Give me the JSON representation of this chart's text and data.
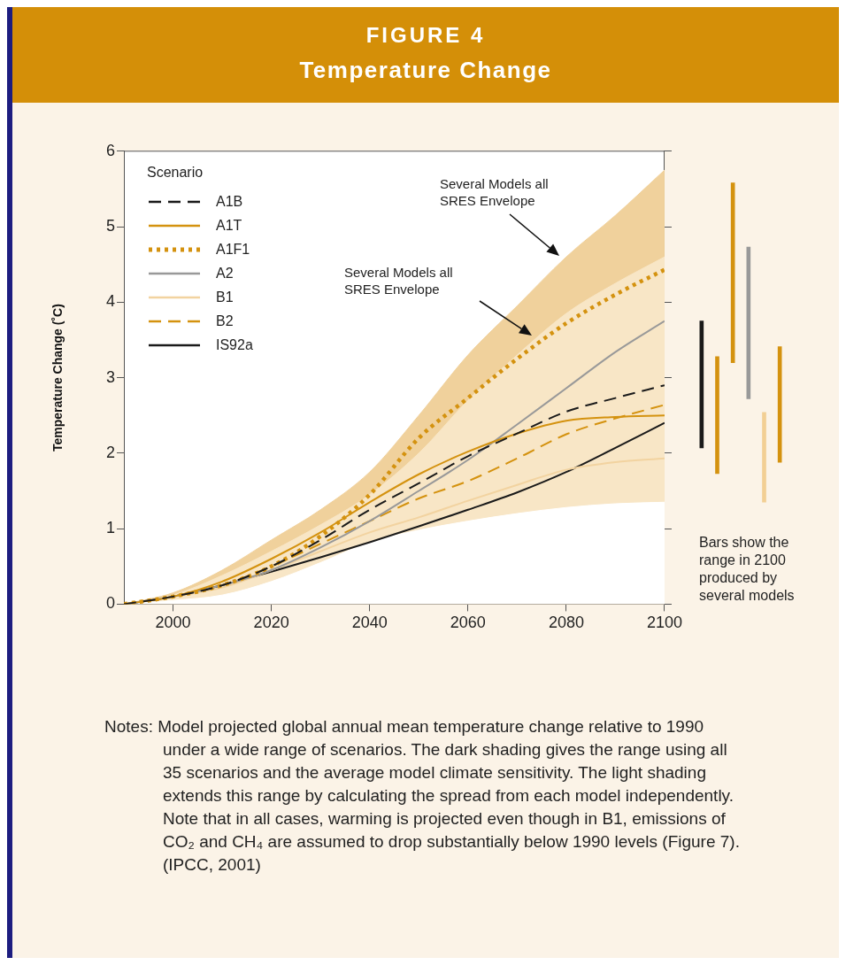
{
  "chart_data": [
    {
      "type": "line",
      "title": "FIGURE 4",
      "subtitle": "Temperature Change",
      "ylabel": "Temperature Change (˚C)",
      "legend_title": "Scenario",
      "legend": "top left",
      "grid": false,
      "marker": "none",
      "x": [
        1990,
        2000,
        2010,
        2020,
        2030,
        2040,
        2050,
        2060,
        2070,
        2080,
        2090,
        2100
      ],
      "xlim": [
        1990,
        2100
      ],
      "xticks": [
        2000,
        2020,
        2040,
        2060,
        2080,
        2100
      ],
      "ylim": [
        0,
        6
      ],
      "yticks": [
        0,
        1,
        2,
        3,
        4,
        5,
        6
      ],
      "series": [
        {
          "type": "area",
          "color": "#f0d19c",
          "values": [
            0,
            0.15,
            0.45,
            0.85,
            1.25,
            1.75,
            2.5,
            3.3,
            3.95,
            4.6,
            5.15,
            5.75
          ]
        },
        {
          "type": "area",
          "color": "#f8e6c6",
          "values": [
            0,
            0.12,
            0.38,
            0.7,
            1.05,
            1.45,
            2.0,
            2.7,
            3.3,
            3.85,
            4.25,
            4.6
          ]
        },
        {
          "type": "area",
          "color": "#ffffff",
          "values": [
            0,
            0.05,
            0.12,
            0.3,
            0.55,
            0.82,
            0.98,
            1.1,
            1.2,
            1.28,
            1.33,
            1.35
          ]
        },
        {
          "name": "A1B",
          "color": "#1a1a1a",
          "line_style": "dashed",
          "values": [
            0,
            0.1,
            0.25,
            0.5,
            0.85,
            1.25,
            1.6,
            1.96,
            2.26,
            2.55,
            2.73,
            2.9
          ]
        },
        {
          "name": "A1T",
          "color": "#d4920f",
          "line_style": "solid",
          "values": [
            0,
            0.1,
            0.3,
            0.6,
            0.95,
            1.35,
            1.72,
            2.02,
            2.26,
            2.43,
            2.48,
            2.5
          ]
        },
        {
          "name": "A1F1",
          "color": "#d4920f",
          "line_style": "dotted",
          "values": [
            0,
            0.1,
            0.25,
            0.5,
            0.9,
            1.45,
            2.2,
            2.73,
            3.25,
            3.72,
            4.1,
            4.43
          ]
        },
        {
          "name": "A2",
          "color": "#999999",
          "line_style": "solid",
          "values": [
            0,
            0.1,
            0.25,
            0.45,
            0.75,
            1.1,
            1.5,
            1.91,
            2.38,
            2.86,
            3.34,
            3.75
          ]
        },
        {
          "name": "B1",
          "color": "#f2d3a0",
          "line_style": "solid",
          "values": [
            0,
            0.1,
            0.22,
            0.45,
            0.7,
            0.95,
            1.15,
            1.37,
            1.58,
            1.78,
            1.88,
            1.93
          ]
        },
        {
          "name": "B2",
          "color": "#d4920f",
          "line_style": "dashed",
          "values": [
            0,
            0.1,
            0.25,
            0.5,
            0.8,
            1.1,
            1.4,
            1.63,
            1.93,
            2.25,
            2.46,
            2.64
          ]
        },
        {
          "name": "IS92a",
          "color": "#1a1a1a",
          "line_style": "solid",
          "values": [
            0,
            0.1,
            0.25,
            0.43,
            0.62,
            0.82,
            1.03,
            1.25,
            1.48,
            1.75,
            2.07,
            2.4
          ]
        }
      ],
      "annotations": [
        "Several Models all SRES Envelope",
        "Several Models all SRES Envelope",
        "Notes: Model projected global annual mean temperature change relative to 1990 under a wide range of scenarios. The dark shading gives the range using all 35 scenarios and the average model climate sensitivity. The light shading extends this range by calculating the spread from each model independently. Note that in all cases, warming is projected even though in B1, emissions of CO₂ and CH₄ are assumed to drop substantially below 1990 levels (Figure 7).  (IPCC, 2001)"
      ]
    },
    {
      "type": "bar",
      "categories": [
        null,
        null,
        null,
        null,
        null,
        null
      ],
      "ylim": [
        0,
        6
      ],
      "yticks": [
        0,
        1,
        2,
        3,
        4,
        5,
        6
      ],
      "tick_labels": false,
      "base": [
        2.07,
        1.73,
        3.2,
        2.72,
        1.35,
        1.88
      ],
      "values": [
        1.68,
        1.55,
        2.38,
        2.01,
        1.19,
        1.53
      ],
      "colors": [
        "#1a1a1a",
        "#d4920f",
        "#d4920f",
        "#999999",
        "#f2cf94",
        "#d4920f"
      ],
      "annotations": [
        "Bars show the range in 2100 produced by several models"
      ]
    }
  ]
}
